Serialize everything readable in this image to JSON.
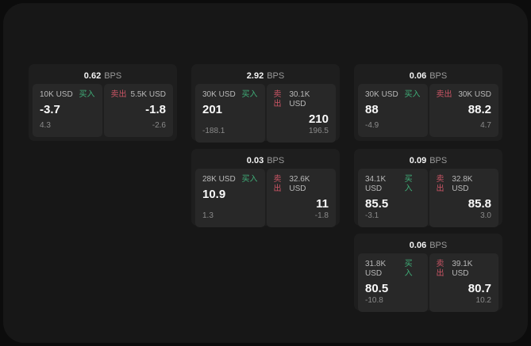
{
  "colors": {
    "outer_bg": "#0c0c0c",
    "window_bg": "#171717",
    "card_bg": "#1e1e1e",
    "tile_bg": "#282828",
    "value_text": "#fafafa",
    "label_text": "#b9b9b9",
    "muted_text": "#8a8a8a",
    "buy_green": "#3fae78",
    "sell_red": "#cb5565"
  },
  "labels": {
    "bps_unit": "BPS",
    "buy": "买入",
    "sell": "卖出"
  },
  "cards": [
    {
      "bps": "0.62",
      "row": 1,
      "col": 1,
      "buy": {
        "amount": "10K USD",
        "value": "-3.7",
        "delta": "4.3"
      },
      "sell": {
        "amount": "5.5K USD",
        "value": "-1.8",
        "delta": "-2.6"
      }
    },
    {
      "bps": "2.92",
      "row": 1,
      "col": 2,
      "buy": {
        "amount": "30K USD",
        "value": "201",
        "delta": "-188.1"
      },
      "sell": {
        "amount": "30.1K USD",
        "value": "210",
        "delta": "196.5"
      }
    },
    {
      "bps": "0.06",
      "row": 1,
      "col": 3,
      "buy": {
        "amount": "30K USD",
        "value": "88",
        "delta": "-4.9"
      },
      "sell": {
        "amount": "30K USD",
        "value": "88.2",
        "delta": "4.7"
      }
    },
    {
      "bps": "0.03",
      "row": 2,
      "col": 2,
      "buy": {
        "amount": "28K USD",
        "value": "10.9",
        "delta": "1.3"
      },
      "sell": {
        "amount": "32.6K USD",
        "value": "11",
        "delta": "-1.8"
      }
    },
    {
      "bps": "0.09",
      "row": 2,
      "col": 3,
      "buy": {
        "amount": "34.1K USD",
        "value": "85.5",
        "delta": "-3.1"
      },
      "sell": {
        "amount": "32.8K USD",
        "value": "85.8",
        "delta": "3.0"
      }
    },
    {
      "bps": "0.06",
      "row": 3,
      "col": 3,
      "buy": {
        "amount": "31.8K USD",
        "value": "80.5",
        "delta": "-10.8"
      },
      "sell": {
        "amount": "39.1K USD",
        "value": "80.7",
        "delta": "10.2"
      }
    }
  ]
}
